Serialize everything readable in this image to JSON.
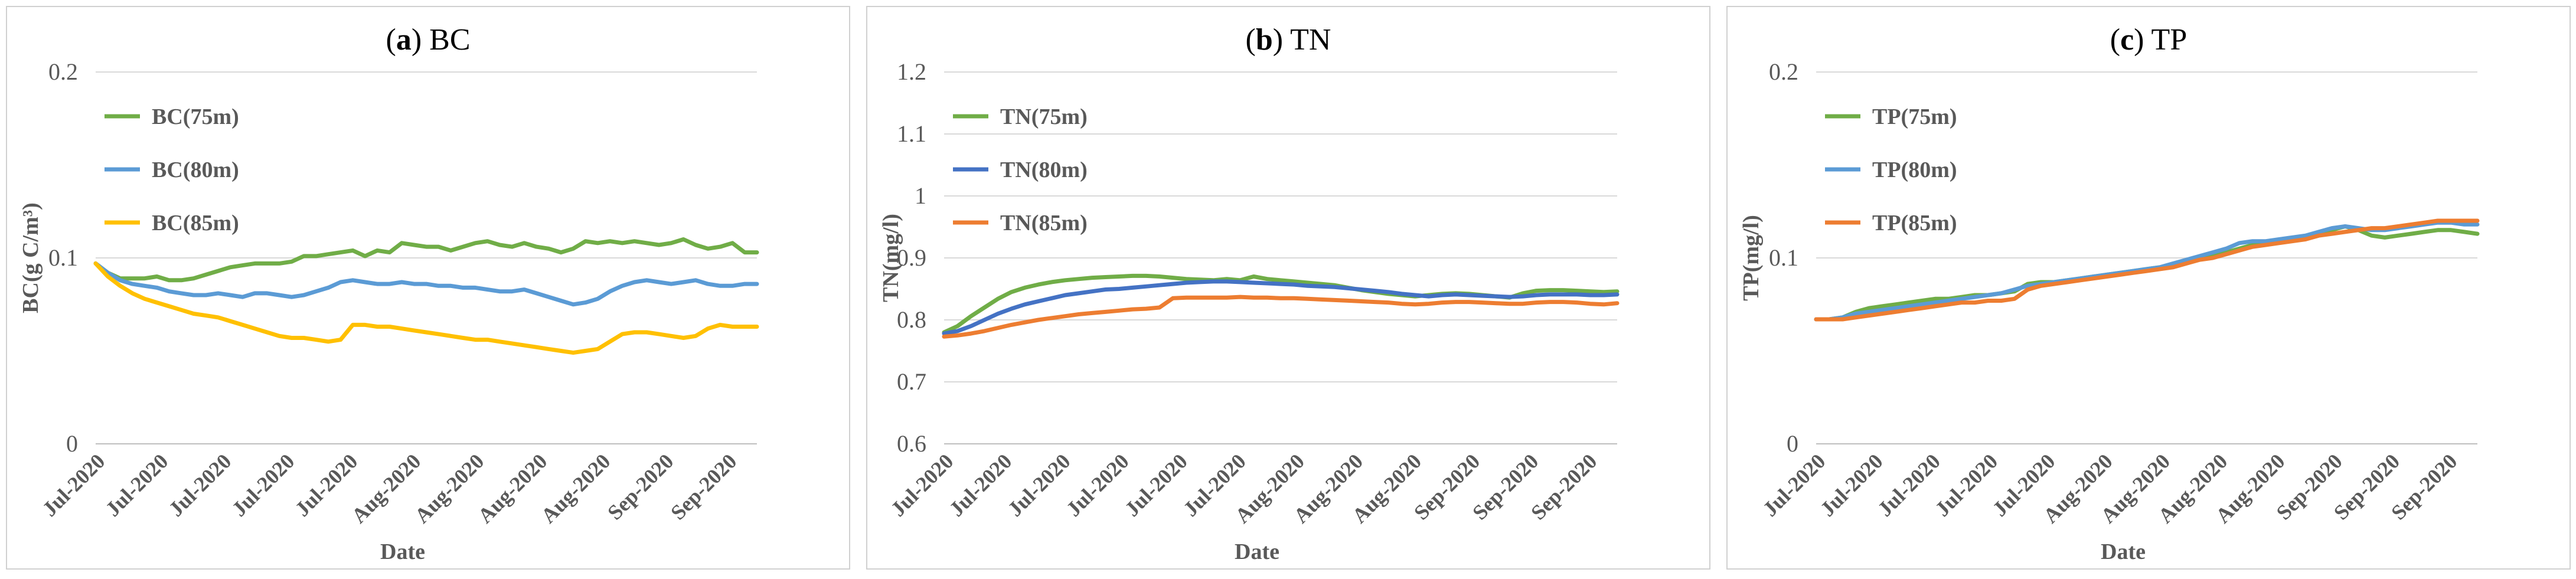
{
  "chart_data": [
    {
      "type": "line",
      "title": "BC",
      "title_letter": "a",
      "xlabel": "Date",
      "ylabel": "BC(g C/m³)",
      "ylim": [
        0,
        0.2
      ],
      "yticks": [
        "0",
        "0.1",
        "0.2"
      ],
      "x_tick_labels": [
        "Jul-2020",
        "Jul-2020",
        "Jul-2020",
        "Jul-2020",
        "Jul-2020",
        "Aug-2020",
        "Aug-2020",
        "Aug-2020",
        "Aug-2020",
        "Sep-2020",
        "Sep-2020"
      ],
      "grid": "horizontal",
      "legend_position": "top-left",
      "series": [
        {
          "name": "BC(75m)",
          "color": "#70ad47",
          "values": [
            0.097,
            0.092,
            0.089,
            0.089,
            0.089,
            0.09,
            0.088,
            0.088,
            0.089,
            0.091,
            0.093,
            0.095,
            0.096,
            0.097,
            0.097,
            0.097,
            0.098,
            0.101,
            0.101,
            0.102,
            0.103,
            0.104,
            0.101,
            0.104,
            0.103,
            0.108,
            0.107,
            0.106,
            0.106,
            0.104,
            0.106,
            0.108,
            0.109,
            0.107,
            0.106,
            0.108,
            0.106,
            0.105,
            0.103,
            0.105,
            0.109,
            0.108,
            0.109,
            0.108,
            0.109,
            0.108,
            0.107,
            0.108,
            0.11,
            0.107,
            0.105,
            0.106,
            0.108,
            0.103,
            0.103
          ]
        },
        {
          "name": "BC(80m)",
          "color": "#5b9bd5",
          "values": [
            0.097,
            0.092,
            0.088,
            0.086,
            0.085,
            0.084,
            0.082,
            0.081,
            0.08,
            0.08,
            0.081,
            0.08,
            0.079,
            0.081,
            0.081,
            0.08,
            0.079,
            0.08,
            0.082,
            0.084,
            0.087,
            0.088,
            0.087,
            0.086,
            0.086,
            0.087,
            0.086,
            0.086,
            0.085,
            0.085,
            0.084,
            0.084,
            0.083,
            0.082,
            0.082,
            0.083,
            0.081,
            0.079,
            0.077,
            0.075,
            0.076,
            0.078,
            0.082,
            0.085,
            0.087,
            0.088,
            0.087,
            0.086,
            0.087,
            0.088,
            0.086,
            0.085,
            0.085,
            0.086,
            0.086
          ]
        },
        {
          "name": "BC(85m)",
          "color": "#ffc000",
          "values": [
            0.097,
            0.09,
            0.085,
            0.081,
            0.078,
            0.076,
            0.074,
            0.072,
            0.07,
            0.069,
            0.068,
            0.066,
            0.064,
            0.062,
            0.06,
            0.058,
            0.057,
            0.057,
            0.056,
            0.055,
            0.056,
            0.064,
            0.064,
            0.063,
            0.063,
            0.062,
            0.061,
            0.06,
            0.059,
            0.058,
            0.057,
            0.056,
            0.056,
            0.055,
            0.054,
            0.053,
            0.052,
            0.051,
            0.05,
            0.049,
            0.05,
            0.051,
            0.055,
            0.059,
            0.06,
            0.06,
            0.059,
            0.058,
            0.057,
            0.058,
            0.062,
            0.064,
            0.063,
            0.063,
            0.063
          ]
        }
      ]
    },
    {
      "type": "line",
      "title": "TN",
      "title_letter": "b",
      "xlabel": "Date",
      "ylabel": "TN(mg/l)",
      "ylim": [
        0.6,
        1.2
      ],
      "yticks": [
        "0.6",
        "0.7",
        "0.8",
        "0.9",
        "1",
        "1.1",
        "1.2"
      ],
      "x_tick_labels": [
        "Jul-2020",
        "Jul-2020",
        "Jul-2020",
        "Jul-2020",
        "Jul-2020",
        "Jul-2020",
        "Aug-2020",
        "Aug-2020",
        "Aug-2020",
        "Sep-2020",
        "Sep-2020",
        "Sep-2020"
      ],
      "grid": "horizontal",
      "legend_position": "top-left",
      "series": [
        {
          "name": "TN(75m)",
          "color": "#70ad47",
          "values": [
            0.78,
            0.79,
            0.806,
            0.82,
            0.834,
            0.845,
            0.852,
            0.857,
            0.861,
            0.864,
            0.866,
            0.868,
            0.869,
            0.87,
            0.871,
            0.871,
            0.87,
            0.868,
            0.866,
            0.865,
            0.864,
            0.866,
            0.864,
            0.87,
            0.866,
            0.864,
            0.862,
            0.86,
            0.858,
            0.856,
            0.852,
            0.848,
            0.845,
            0.842,
            0.84,
            0.838,
            0.84,
            0.842,
            0.843,
            0.842,
            0.84,
            0.838,
            0.836,
            0.843,
            0.847,
            0.848,
            0.848,
            0.847,
            0.846,
            0.845,
            0.846
          ]
        },
        {
          "name": "TN(80m)",
          "color": "#4472c4",
          "values": [
            0.778,
            0.782,
            0.79,
            0.8,
            0.81,
            0.818,
            0.825,
            0.83,
            0.835,
            0.84,
            0.843,
            0.846,
            0.849,
            0.85,
            0.852,
            0.854,
            0.856,
            0.858,
            0.86,
            0.861,
            0.862,
            0.862,
            0.861,
            0.86,
            0.859,
            0.858,
            0.857,
            0.855,
            0.854,
            0.853,
            0.851,
            0.849,
            0.847,
            0.845,
            0.842,
            0.84,
            0.838,
            0.84,
            0.841,
            0.84,
            0.839,
            0.838,
            0.837,
            0.838,
            0.84,
            0.841,
            0.841,
            0.841,
            0.84,
            0.84,
            0.841
          ]
        },
        {
          "name": "TN(85m)",
          "color": "#ed7d31",
          "values": [
            0.773,
            0.775,
            0.778,
            0.782,
            0.787,
            0.792,
            0.796,
            0.8,
            0.803,
            0.806,
            0.809,
            0.811,
            0.813,
            0.815,
            0.817,
            0.818,
            0.82,
            0.835,
            0.836,
            0.836,
            0.836,
            0.836,
            0.837,
            0.836,
            0.836,
            0.835,
            0.835,
            0.834,
            0.833,
            0.832,
            0.831,
            0.83,
            0.829,
            0.828,
            0.826,
            0.825,
            0.826,
            0.828,
            0.829,
            0.829,
            0.828,
            0.827,
            0.826,
            0.826,
            0.828,
            0.829,
            0.829,
            0.828,
            0.826,
            0.825,
            0.827
          ]
        }
      ]
    },
    {
      "type": "line",
      "title": "TP",
      "title_letter": "c",
      "xlabel": "Date",
      "ylabel": "TP(mg/l)",
      "ylim": [
        0,
        0.2
      ],
      "yticks": [
        "0",
        "0.1",
        "0.2"
      ],
      "x_tick_labels": [
        "Jul-2020",
        "Jul-2020",
        "Jul-2020",
        "Jul-2020",
        "Jul-2020",
        "Aug-2020",
        "Aug-2020",
        "Aug-2020",
        "Aug-2020",
        "Sep-2020",
        "Sep-2020",
        "Sep-2020"
      ],
      "grid": "horizontal",
      "legend_position": "top-left",
      "series": [
        {
          "name": "TP(75m)",
          "color": "#70ad47",
          "values": [
            0.067,
            0.067,
            0.068,
            0.071,
            0.073,
            0.074,
            0.075,
            0.076,
            0.077,
            0.078,
            0.078,
            0.079,
            0.08,
            0.08,
            0.081,
            0.082,
            0.086,
            0.087,
            0.087,
            0.088,
            0.089,
            0.09,
            0.091,
            0.092,
            0.093,
            0.094,
            0.095,
            0.096,
            0.098,
            0.1,
            0.101,
            0.103,
            0.105,
            0.107,
            0.108,
            0.109,
            0.11,
            0.111,
            0.113,
            0.115,
            0.117,
            0.115,
            0.112,
            0.111,
            0.112,
            0.113,
            0.114,
            0.115,
            0.115,
            0.114,
            0.113
          ]
        },
        {
          "name": "TP(80m)",
          "color": "#5b9bd5",
          "values": [
            0.067,
            0.067,
            0.068,
            0.07,
            0.071,
            0.072,
            0.073,
            0.074,
            0.075,
            0.076,
            0.077,
            0.078,
            0.079,
            0.08,
            0.081,
            0.083,
            0.085,
            0.086,
            0.087,
            0.088,
            0.089,
            0.09,
            0.091,
            0.092,
            0.093,
            0.094,
            0.095,
            0.097,
            0.099,
            0.101,
            0.103,
            0.105,
            0.108,
            0.109,
            0.109,
            0.11,
            0.111,
            0.112,
            0.114,
            0.116,
            0.117,
            0.116,
            0.115,
            0.115,
            0.116,
            0.117,
            0.118,
            0.119,
            0.119,
            0.118,
            0.118
          ]
        },
        {
          "name": "TP(85m)",
          "color": "#ed7d31",
          "values": [
            0.067,
            0.067,
            0.067,
            0.068,
            0.069,
            0.07,
            0.071,
            0.072,
            0.073,
            0.074,
            0.075,
            0.076,
            0.076,
            0.077,
            0.077,
            0.078,
            0.083,
            0.085,
            0.086,
            0.087,
            0.088,
            0.089,
            0.09,
            0.091,
            0.092,
            0.093,
            0.094,
            0.095,
            0.097,
            0.099,
            0.1,
            0.102,
            0.104,
            0.106,
            0.107,
            0.108,
            0.109,
            0.11,
            0.112,
            0.113,
            0.114,
            0.115,
            0.116,
            0.116,
            0.117,
            0.118,
            0.119,
            0.12,
            0.12,
            0.12,
            0.12
          ]
        }
      ]
    }
  ]
}
